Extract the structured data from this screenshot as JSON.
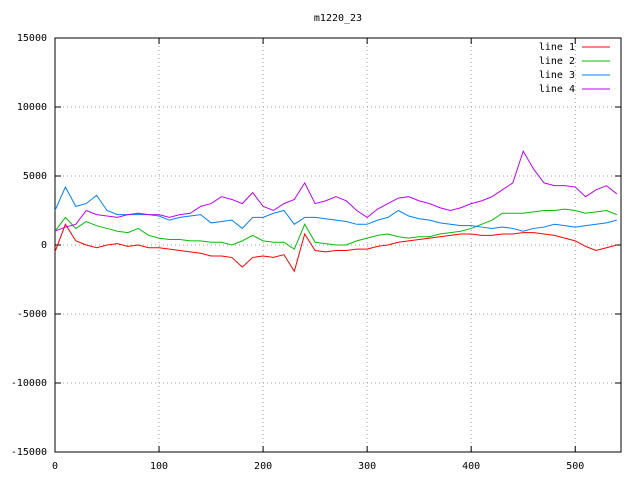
{
  "chart_data": {
    "type": "line",
    "title": "m1220_23",
    "x": [
      0,
      10,
      20,
      30,
      40,
      50,
      60,
      70,
      80,
      90,
      100,
      110,
      120,
      130,
      140,
      150,
      160,
      170,
      180,
      190,
      200,
      210,
      220,
      230,
      240,
      250,
      260,
      270,
      280,
      290,
      300,
      310,
      320,
      330,
      340,
      350,
      360,
      370,
      380,
      390,
      400,
      410,
      420,
      430,
      440,
      450,
      460,
      470,
      480,
      490,
      500,
      510,
      520,
      530,
      540
    ],
    "series": [
      {
        "name": "line 1",
        "color": "#ff0000",
        "values": [
          -500,
          1500,
          300,
          0,
          -200,
          0,
          100,
          -100,
          0,
          -200,
          -200,
          -300,
          -400,
          -500,
          -600,
          -800,
          -800,
          -900,
          -1600,
          -900,
          -800,
          -900,
          -700,
          -1900,
          800,
          -400,
          -500,
          -400,
          -400,
          -300,
          -300,
          -100,
          0,
          200,
          300,
          400,
          500,
          600,
          700,
          800,
          800,
          700,
          700,
          800,
          800,
          900,
          900,
          800,
          700,
          500,
          300,
          -100,
          -400,
          -200,
          0
        ]
      },
      {
        "name": "line 2",
        "color": "#00c000",
        "values": [
          1000,
          2000,
          1200,
          1700,
          1400,
          1200,
          1000,
          900,
          1200,
          700,
          500,
          400,
          400,
          300,
          300,
          200,
          200,
          0,
          300,
          700,
          300,
          200,
          200,
          -300,
          1500,
          200,
          100,
          0,
          0,
          300,
          500,
          700,
          800,
          600,
          500,
          600,
          600,
          800,
          900,
          1000,
          1200,
          1500,
          1800,
          2300,
          2300,
          2300,
          2400,
          2500,
          2500,
          2600,
          2500,
          2300,
          2400,
          2500,
          2200
        ]
      },
      {
        "name": "line 3",
        "color": "#0080ff",
        "values": [
          2500,
          4200,
          2800,
          3000,
          3600,
          2500,
          2200,
          2200,
          2200,
          2200,
          2100,
          1800,
          2000,
          2100,
          2200,
          1600,
          1700,
          1800,
          1200,
          2000,
          2000,
          2300,
          2500,
          1500,
          2000,
          2000,
          1900,
          1800,
          1700,
          1500,
          1500,
          1800,
          2000,
          2500,
          2100,
          1900,
          1800,
          1600,
          1500,
          1400,
          1400,
          1300,
          1200,
          1300,
          1200,
          1000,
          1200,
          1300,
          1500,
          1400,
          1300,
          1400,
          1500,
          1600,
          1800
        ]
      },
      {
        "name": "line 4",
        "color": "#c000ff",
        "values": [
          1000,
          1300,
          1500,
          2500,
          2200,
          2100,
          2000,
          2200,
          2300,
          2200,
          2200,
          2000,
          2200,
          2300,
          2800,
          3000,
          3500,
          3300,
          3000,
          3800,
          2800,
          2500,
          3000,
          3300,
          4500,
          3000,
          3200,
          3500,
          3200,
          2500,
          2000,
          2600,
          3000,
          3400,
          3500,
          3200,
          3000,
          2700,
          2500,
          2700,
          3000,
          3200,
          3500,
          4000,
          4500,
          6800,
          5500,
          4500,
          4300,
          4300,
          4200,
          3500,
          4000,
          4300,
          3700
        ]
      }
    ],
    "xlim": [
      0,
      544
    ],
    "xticks": [
      0,
      100,
      200,
      300,
      400,
      500
    ],
    "ylim": [
      -15000,
      15000
    ],
    "yticks": [
      -15000,
      -10000,
      -5000,
      0,
      5000,
      10000,
      15000
    ],
    "grid": true,
    "legend": "top-right"
  }
}
